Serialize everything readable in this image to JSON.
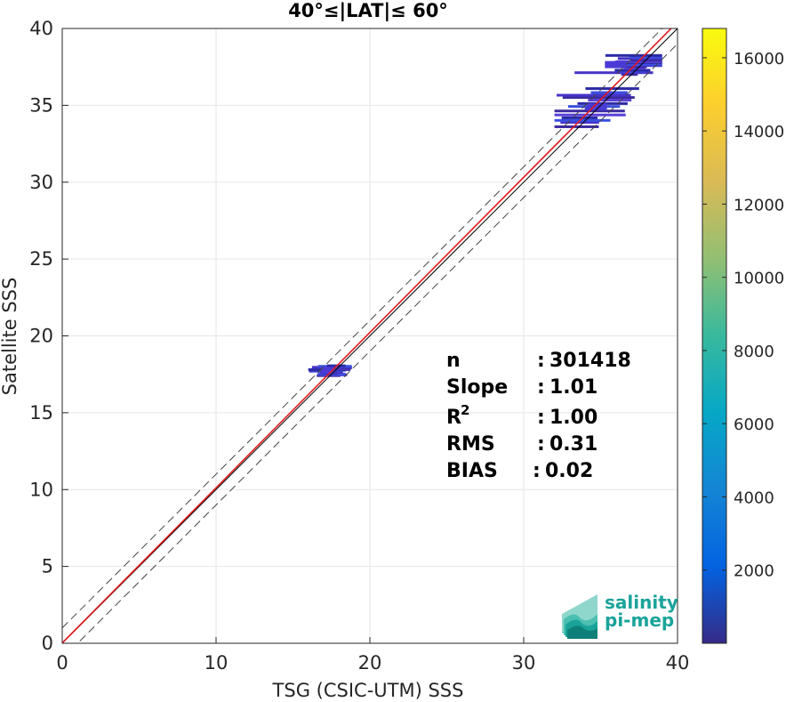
{
  "chart_data": {
    "type": "scatter",
    "subtype": "density-heatmap",
    "title": "40°≤|LAT|≤ 60°",
    "xlabel": "TSG (CSIC-UTM) SSS",
    "ylabel": "Satellite SSS",
    "xlim": [
      0,
      40
    ],
    "ylim": [
      0,
      40
    ],
    "xticks": [
      "0",
      "10",
      "20",
      "30",
      "40"
    ],
    "yticks": [
      "0",
      "5",
      "10",
      "15",
      "20",
      "25",
      "30",
      "35",
      "40"
    ],
    "grid": true,
    "reference_lines": {
      "fit_line": {
        "slope": 1.01,
        "intercept": 0.02,
        "color": "#e31a1c"
      },
      "identity_line": {
        "slope": 1.0,
        "intercept": 0.0,
        "color": "#000000"
      },
      "envelope_lines": {
        "offset": 1.0,
        "color": "#444444",
        "style": "dashed"
      }
    },
    "density_clusters": [
      {
        "x": [
          15.5,
          19.0
        ],
        "y": [
          17.4,
          18.1
        ]
      },
      {
        "x": [
          32.0,
          37.5
        ],
        "y": [
          33.6,
          36.2
        ]
      },
      {
        "x": [
          33.0,
          39.0
        ],
        "y": [
          37.0,
          38.3
        ]
      }
    ],
    "colorbar": {
      "range": [
        0,
        16800
      ],
      "ticks": [
        "2000",
        "4000",
        "6000",
        "8000",
        "10000",
        "12000",
        "14000",
        "16000"
      ],
      "colormap": "parula"
    },
    "stats": [
      {
        "label": "n",
        "sep": ":",
        "value": "301418"
      },
      {
        "label": "Slope",
        "sep": ":",
        "value": "1.01"
      },
      {
        "label": "R",
        "sup": "2",
        "sep": ":",
        "value": "1.00"
      },
      {
        "label": "RMS",
        "sep": ":",
        "value": "0.31"
      },
      {
        "label": "BIAS",
        "sep": ":",
        "value": "0.02"
      }
    ]
  },
  "logo": {
    "line1": "salinity",
    "line2": "pi-mep",
    "icon": "wave-stack-icon",
    "color": "#1aa39a"
  }
}
